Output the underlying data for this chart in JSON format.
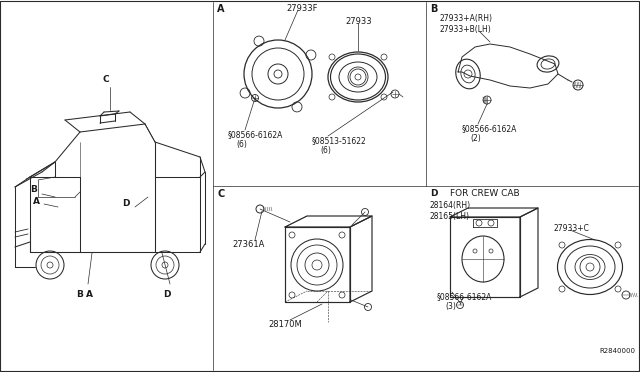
{
  "bg_color": "#ffffff",
  "line_color": "#2a2a2a",
  "text_color": "#1a1a1a",
  "fig_width": 6.4,
  "fig_height": 3.72,
  "dpi": 100,
  "labels": {
    "section_A": "A",
    "section_B": "B",
    "section_C": "C",
    "section_D": "D",
    "part_27933F": "27933F",
    "part_27933": "27933",
    "part_08566_6": "§08566-6162A\n(6)",
    "part_08513": "§08513-51622\n(6)",
    "part_27933AB": "27933+A(RH)\n27933+B(LH)",
    "part_08566_2": "§08566-6162A\n(2)",
    "part_27361A": "27361A",
    "part_28170M": "28170M",
    "part_D_header": "D   FOR CREW CAB",
    "part_28164": "28164(RH)\n28165(LH)",
    "part_27933C": "27933+C",
    "part_08566_3": "§08566-6162A\n(3)",
    "part_R2840000": "R2840000"
  }
}
